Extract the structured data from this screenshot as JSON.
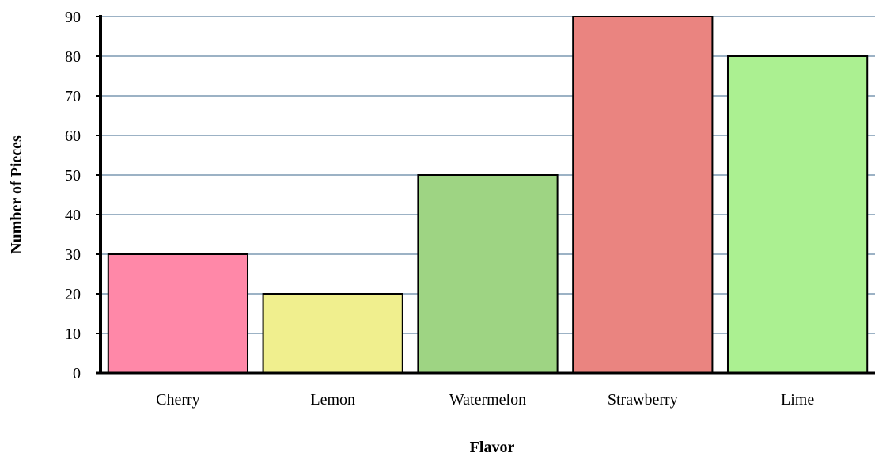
{
  "chart_data": {
    "type": "bar",
    "categories": [
      "Cherry",
      "Lemon",
      "Watermelon",
      "Strawberry",
      "Lime"
    ],
    "values": [
      30,
      20,
      50,
      90,
      80
    ],
    "bar_colors": [
      "#ff88a8",
      "#f0ef8e",
      "#9ed483",
      "#ea8480",
      "#abf091"
    ],
    "title": "",
    "xlabel": "Flavor",
    "ylabel": "Number of Pieces",
    "ylim": [
      0,
      90
    ],
    "yticks": [
      0,
      10,
      20,
      30,
      40,
      50,
      60,
      70,
      80,
      90
    ],
    "grid": true,
    "gridline_color": "#7b98b2",
    "legend": "none"
  }
}
